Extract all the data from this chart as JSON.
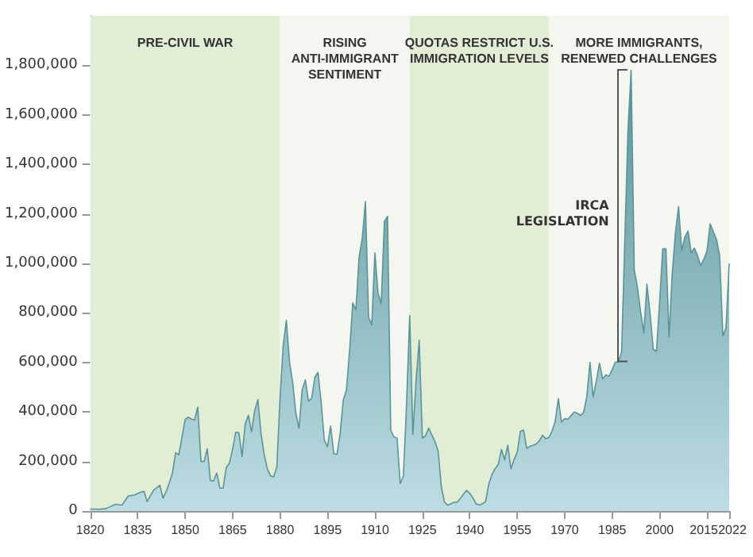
{
  "chart_data": {
    "type": "area",
    "x": [
      1820,
      1823,
      1825,
      1828,
      1830,
      1832,
      1834,
      1836,
      1837,
      1838,
      1840,
      1842,
      1843,
      1844,
      1845,
      1846,
      1847,
      1848,
      1849,
      1850,
      1851,
      1852,
      1853,
      1854,
      1855,
      1856,
      1857,
      1858,
      1859,
      1860,
      1861,
      1862,
      1863,
      1864,
      1865,
      1866,
      1867,
      1868,
      1869,
      1870,
      1871,
      1872,
      1873,
      1874,
      1875,
      1876,
      1877,
      1878,
      1879,
      1880,
      1881,
      1882,
      1883,
      1884,
      1885,
      1886,
      1887,
      1888,
      1889,
      1890,
      1891,
      1892,
      1893,
      1894,
      1895,
      1896,
      1897,
      1898,
      1899,
      1900,
      1901,
      1902,
      1903,
      1904,
      1905,
      1906,
      1907,
      1908,
      1909,
      1910,
      1911,
      1912,
      1913,
      1914,
      1915,
      1916,
      1917,
      1918,
      1919,
      1920,
      1921,
      1922,
      1923,
      1924,
      1925,
      1926,
      1927,
      1928,
      1929,
      1930,
      1931,
      1932,
      1933,
      1934,
      1935,
      1936,
      1937,
      1938,
      1939,
      1940,
      1941,
      1942,
      1943,
      1944,
      1945,
      1946,
      1947,
      1948,
      1949,
      1950,
      1951,
      1952,
      1953,
      1954,
      1955,
      1956,
      1957,
      1958,
      1959,
      1960,
      1961,
      1962,
      1963,
      1964,
      1965,
      1966,
      1967,
      1968,
      1969,
      1970,
      1971,
      1972,
      1973,
      1974,
      1975,
      1976,
      1977,
      1978,
      1979,
      1980,
      1981,
      1982,
      1983,
      1984,
      1985,
      1986,
      1987,
      1988,
      1989,
      1990,
      1991,
      1992,
      1993,
      1994,
      1995,
      1996,
      1997,
      1998,
      1999,
      2000,
      2001,
      2002,
      2003,
      2004,
      2005,
      2006,
      2007,
      2008,
      2009,
      2010,
      2011,
      2012,
      2013,
      2014,
      2015,
      2016,
      2017,
      2018,
      2019,
      2020,
      2021,
      2022
    ],
    "series": [
      {
        "color": "#5b9498",
        "values": [
          8000,
          7000,
          10000,
          27000,
          23000,
          60000,
          65000,
          76000,
          79000,
          38000,
          84000,
          104000,
          52000,
          78000,
          114000,
          154000,
          235000,
          227000,
          297000,
          370000,
          379000,
          371000,
          368000,
          420000,
          200000,
          200000,
          251000,
          123000,
          121000,
          153000,
          92000,
          92000,
          176000,
          193000,
          249000,
          319000,
          316000,
          220000,
          353000,
          387000,
          321000,
          405000,
          450000,
          313000,
          227000,
          170000,
          142000,
          138000,
          178000,
          457000,
          669000,
          770000,
          603000,
          519000,
          395000,
          334000,
          490000,
          530000,
          444000,
          455000,
          540000,
          560000,
          440000,
          286000,
          259000,
          343000,
          231000,
          229000,
          312000,
          449000,
          488000,
          649000,
          840000,
          813000,
          1026000,
          1101000,
          1250000,
          783000,
          752000,
          1042000,
          879000,
          838000,
          1170000,
          1190000,
          327000,
          299000,
          295000,
          111000,
          141000,
          430000,
          790000,
          310000,
          523000,
          690000,
          294000,
          304000,
          335000,
          307000,
          280000,
          242000,
          97000,
          36000,
          23000,
          29000,
          35000,
          36000,
          50000,
          68000,
          83000,
          71000,
          52000,
          29000,
          24000,
          29000,
          38000,
          109000,
          147000,
          171000,
          188000,
          249000,
          206000,
          266000,
          170000,
          208000,
          238000,
          322000,
          327000,
          253000,
          261000,
          265000,
          271000,
          284000,
          306000,
          292000,
          297000,
          323000,
          362000,
          454000,
          359000,
          373000,
          370000,
          385000,
          400000,
          395000,
          386000,
          399000,
          462000,
          601000,
          460000,
          525000,
          597000,
          534000,
          550000,
          544000,
          570000,
          602000,
          602000,
          643000,
          1091000,
          1536000,
          1780000,
          974000,
          904000,
          804000,
          720000,
          916000,
          798000,
          653000,
          645000,
          841000,
          1059000,
          1059000,
          704000,
          958000,
          1122000,
          1230000,
          1052000,
          1107000,
          1131000,
          1043000,
          1062000,
          1031000,
          991000,
          1017000,
          1051000,
          1160000,
          1127000,
          1097000,
          1031000,
          707000,
          740000,
          1000000
        ]
      }
    ],
    "xlim": [
      1820,
      2022
    ],
    "xticks": [
      1820,
      1835,
      1850,
      1865,
      1880,
      1895,
      1910,
      1925,
      1940,
      1955,
      1970,
      1985,
      2000,
      2015,
      2022
    ],
    "ylim": [
      0,
      2000000
    ],
    "yticks": [
      0,
      {
        "value": 200000,
        "label": "200,000"
      },
      {
        "value": 400000,
        "label": "400,000"
      },
      {
        "value": 600000,
        "label": "600,000"
      },
      {
        "value": 800000,
        "label": "800,000"
      },
      {
        "value": 1000000,
        "label": "1,000,000"
      },
      {
        "value": 1200000,
        "label": "1,200,000"
      },
      {
        "value": 1400000,
        "label": "1,400,000"
      },
      {
        "value": 1600000,
        "label": "1,600,000"
      },
      {
        "value": 1800000,
        "label": "1,800,000"
      }
    ],
    "bands": [
      {
        "axis": "x",
        "from": 1820,
        "to": 1880,
        "label": "PRE-CIVIL WAR",
        "color": "#e1eed5"
      },
      {
        "axis": "x",
        "from": 1880,
        "to": 1921,
        "label": "RISING\nANTI-IMMIGRANT\nSENTIMENT",
        "color": "#f4f7f0"
      },
      {
        "axis": "x",
        "from": 1921,
        "to": 1965,
        "label": "QUOTAS RESTRICT U.S.\nIMMIGRATION LEVELS",
        "color": "#e1eed5"
      },
      {
        "axis": "x",
        "from": 1965,
        "to": 2022,
        "label": "MORE IMMIGRANTS,\nRENEWED CHALLENGES",
        "color": "#f4f7f0"
      }
    ],
    "annotations": [
      {
        "text": "IRCA\nLEGISLATION",
        "x": 1987,
        "y": 1200000
      }
    ],
    "marker": "none",
    "line_style": "solid"
  }
}
